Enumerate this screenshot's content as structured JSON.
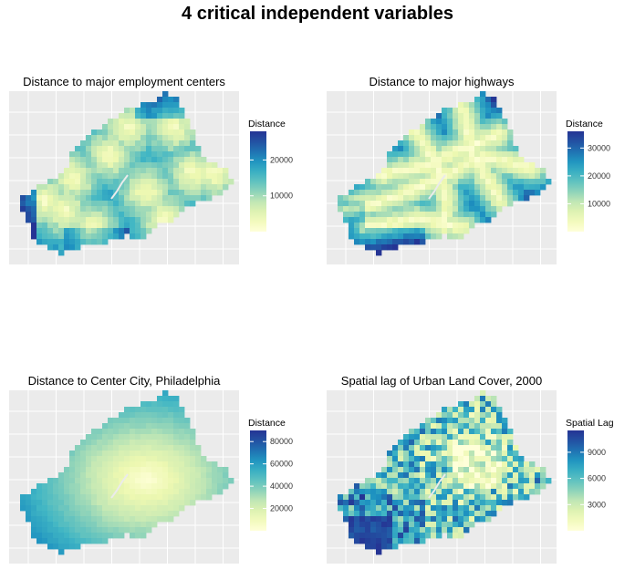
{
  "title": "4 critical independent variables",
  "chart_data": [
    {
      "type": "heatmap",
      "title": "Distance to major employment centers",
      "legend_title": "Distance",
      "legend_ticks": [
        10000,
        20000
      ],
      "range": [
        0,
        28000
      ],
      "colormap": "YlGnBu",
      "pattern": "scattered-minima"
    },
    {
      "type": "heatmap",
      "title": "Distance to major highways",
      "legend_title": "Distance",
      "legend_ticks": [
        10000,
        20000,
        30000
      ],
      "range": [
        0,
        36000
      ],
      "colormap": "YlGnBu",
      "pattern": "highway-corridors"
    },
    {
      "type": "heatmap",
      "title": "Distance to Center City, Philadelphia",
      "legend_title": "Distance",
      "legend_ticks": [
        20000,
        40000,
        60000,
        80000
      ],
      "range": [
        0,
        90000
      ],
      "colormap": "YlGnBu",
      "pattern": "radial-from-center"
    },
    {
      "type": "heatmap",
      "title": "Spatial lag of Urban Land Cover, 2000",
      "legend_title": "Spatial Lag",
      "legend_ticks": [
        3000,
        6000,
        9000
      ],
      "range": [
        0,
        11500
      ],
      "colormap": "YlGnBu",
      "pattern": "noisy-urban"
    }
  ]
}
